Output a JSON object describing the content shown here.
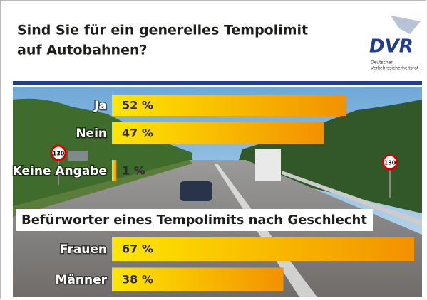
{
  "header": {
    "title_lines": [
      "Sind Sie für ein generelles Tempolimit",
      "auf Autobahnen?"
    ],
    "logo": {
      "text": "DVR",
      "caption_lines": [
        "Deutscher",
        "Verkehrssicherheitsrat"
      ]
    }
  },
  "signs": [
    "130",
    "130"
  ],
  "chart_data": [
    {
      "type": "bar",
      "orientation": "horizontal",
      "categories": [
        "Ja",
        "Nein",
        "Keine Angabe"
      ],
      "values": [
        52,
        47,
        1
      ],
      "value_labels": [
        "52 %",
        "47 %",
        "1 %"
      ],
      "colors": [
        "#ffe600",
        "#f29100"
      ]
    },
    {
      "type": "bar",
      "orientation": "horizontal",
      "title": "Befürworter eines Tempolimits nach Geschlecht",
      "categories": [
        "Frauen",
        "Männer"
      ],
      "values": [
        67,
        38
      ],
      "value_labels": [
        "67 %",
        "38 %"
      ],
      "colors": [
        "#ffe600",
        "#f29100"
      ]
    }
  ]
}
